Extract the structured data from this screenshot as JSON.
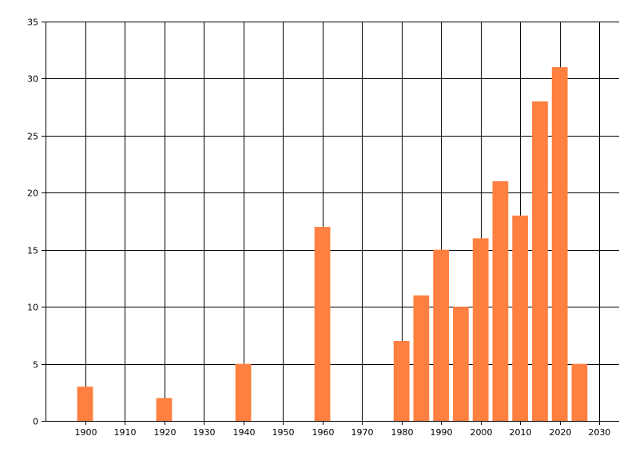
{
  "chart_data": {
    "type": "bar",
    "x": [
      1900,
      1920,
      1940,
      1960,
      1980,
      1985,
      1990,
      1995,
      2000,
      2005,
      2010,
      2015,
      2020,
      2025
    ],
    "values": [
      3,
      2,
      5,
      17,
      7,
      11,
      15,
      10,
      16,
      21,
      18,
      28,
      31,
      5
    ],
    "title": "",
    "xlabel": "",
    "ylabel": "",
    "xlim": [
      1890,
      2035
    ],
    "ylim": [
      0,
      35
    ],
    "x_ticks": [
      1900,
      1910,
      1920,
      1930,
      1940,
      1950,
      1960,
      1970,
      1980,
      1990,
      2000,
      2010,
      2020,
      2030
    ],
    "y_ticks": [
      0,
      5,
      10,
      15,
      20,
      25,
      30,
      35
    ],
    "x_tick_labels": [
      "1900",
      "1910",
      "1920",
      "1930",
      "1940",
      "1950",
      "1960",
      "1970",
      "1980",
      "1990",
      "2000",
      "2010",
      "2020",
      "2030"
    ],
    "y_tick_labels": [
      "0",
      "5",
      "10",
      "15",
      "20",
      "25",
      "30",
      "35"
    ],
    "bar_width_years": 4,
    "grid": true,
    "legend": "none",
    "colors": {
      "bar": "#FF8040",
      "grid": "#000000",
      "axis": "#000000",
      "background": "#FFFFFF"
    }
  }
}
